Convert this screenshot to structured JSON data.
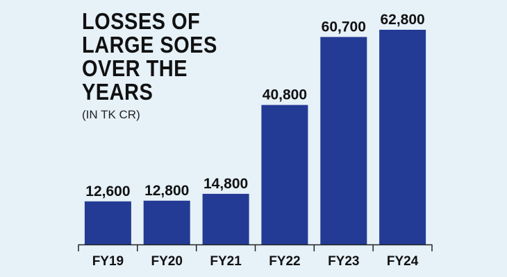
{
  "colors": {
    "background": "#e6f1f8",
    "bar": "#233b94",
    "text": "#111111",
    "axis": "#222222"
  },
  "chart_data": {
    "type": "bar",
    "title_lines": [
      "LOSSES OF",
      "LARGE SOES",
      "OVER THE",
      "YEARS"
    ],
    "subtitle": "(IN TK CR)",
    "categories": [
      "FY19",
      "FY20",
      "FY21",
      "FY22",
      "FY23",
      "FY24"
    ],
    "values": [
      12600,
      12800,
      14800,
      40800,
      60700,
      62800
    ],
    "data_labels": [
      "12,600",
      "12,800",
      "14,800",
      "40,800",
      "60,700",
      "62,800"
    ],
    "xlabel": "",
    "ylabel": "",
    "ylim": [
      0,
      62800
    ],
    "grid": false,
    "legend": "none"
  }
}
